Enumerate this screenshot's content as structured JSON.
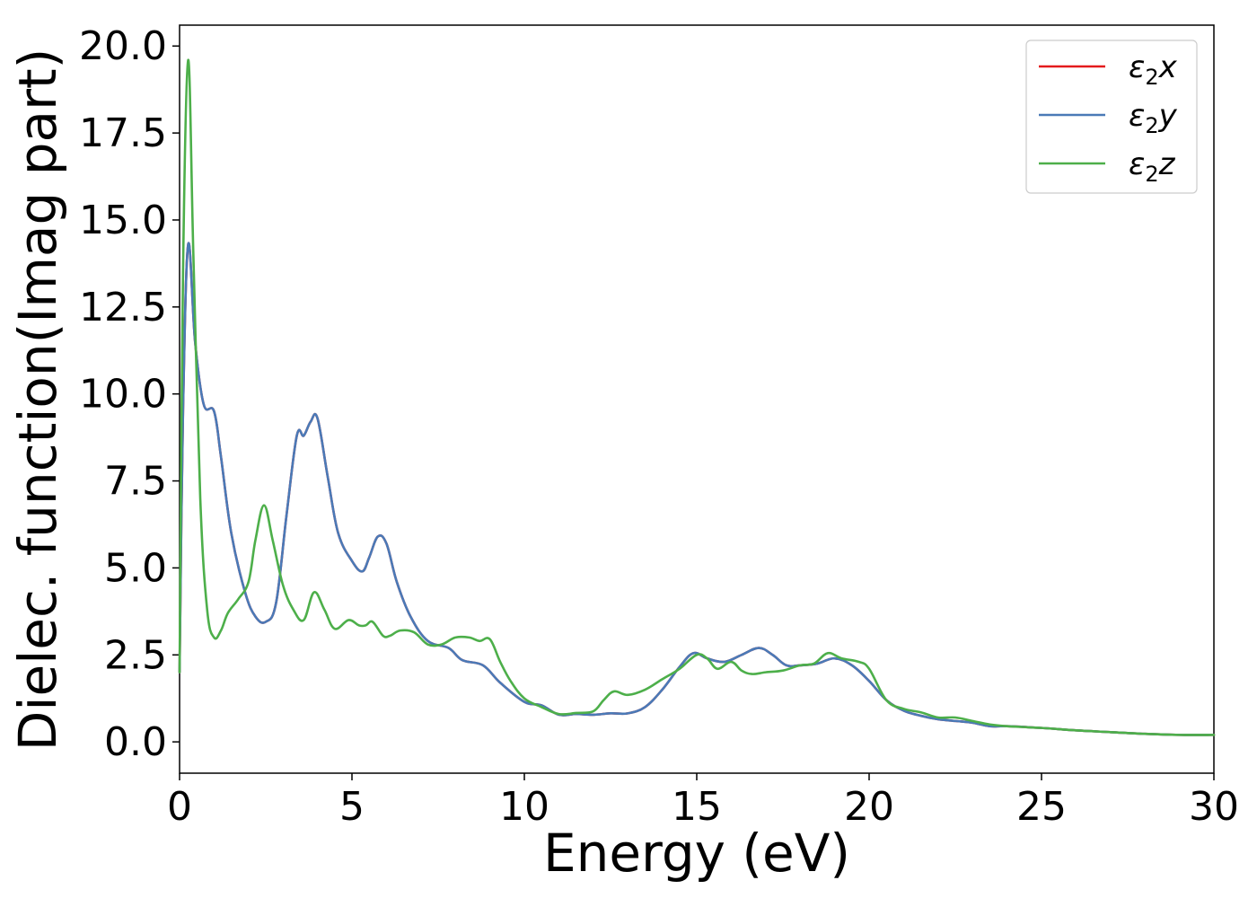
{
  "chart_data": {
    "type": "line",
    "xlabel": "Energy (eV)",
    "ylabel": "Dielec. function(Imag part)",
    "xlim": [
      0,
      30
    ],
    "ylim": [
      -0.9,
      20.6
    ],
    "xticks": [
      0,
      5,
      10,
      15,
      20,
      25,
      30
    ],
    "xtick_labels": [
      "0",
      "5",
      "10",
      "15",
      "20",
      "25",
      "30"
    ],
    "yticks": [
      0.0,
      2.5,
      5.0,
      7.5,
      10.0,
      12.5,
      15.0,
      17.5,
      20.0
    ],
    "ytick_labels": [
      "0.0",
      "2.5",
      "5.0",
      "7.5",
      "10.0",
      "12.5",
      "15.0",
      "17.5",
      "20.0"
    ],
    "grid": false,
    "legend_position": "top-right",
    "series": [
      {
        "name": "ε2x",
        "base": "ε",
        "sub": "2",
        "suffix": "x",
        "color": "#e41a1c",
        "x": [
          0,
          0.1,
          0.25,
          0.45,
          0.7,
          1.0,
          1.2,
          1.5,
          1.9,
          2.2,
          2.5,
          2.8,
          3.1,
          3.4,
          3.6,
          3.8,
          4.0,
          4.3,
          4.6,
          5.0,
          5.3,
          5.5,
          5.75,
          6.0,
          6.3,
          6.7,
          7.2,
          7.8,
          8.2,
          8.8,
          9.3,
          10.0,
          10.5,
          11.0,
          11.5,
          12.0,
          12.5,
          13.0,
          13.5,
          14.0,
          14.5,
          14.9,
          15.3,
          15.8,
          16.3,
          16.8,
          17.2,
          17.6,
          18.0,
          18.5,
          19.0,
          19.5,
          20.0,
          20.5,
          21.0,
          21.5,
          22.0,
          22.5,
          23.0,
          23.5,
          24.0,
          25.0,
          26.0,
          27.0,
          28.0,
          29.0,
          30.0
        ],
        "y": [
          2.0,
          9.5,
          14.3,
          11.5,
          9.7,
          9.5,
          8.2,
          6.0,
          4.3,
          3.6,
          3.45,
          4.0,
          6.5,
          8.8,
          8.8,
          9.2,
          9.3,
          7.6,
          6.0,
          5.2,
          4.9,
          5.3,
          5.9,
          5.7,
          4.6,
          3.6,
          2.9,
          2.7,
          2.35,
          2.2,
          1.7,
          1.15,
          1.05,
          0.78,
          0.8,
          0.78,
          0.82,
          0.82,
          1.0,
          1.5,
          2.15,
          2.55,
          2.4,
          2.3,
          2.5,
          2.7,
          2.5,
          2.2,
          2.2,
          2.25,
          2.4,
          2.2,
          1.75,
          1.2,
          0.9,
          0.75,
          0.65,
          0.6,
          0.55,
          0.45,
          0.45,
          0.4,
          0.33,
          0.28,
          0.23,
          0.2,
          0.2
        ]
      },
      {
        "name": "ε2y",
        "base": "ε",
        "sub": "2",
        "suffix": "y",
        "color": "#4a7ab7",
        "x": [
          0,
          0.1,
          0.25,
          0.45,
          0.7,
          1.0,
          1.2,
          1.5,
          1.9,
          2.2,
          2.5,
          2.8,
          3.1,
          3.4,
          3.6,
          3.8,
          4.0,
          4.3,
          4.6,
          5.0,
          5.3,
          5.5,
          5.75,
          6.0,
          6.3,
          6.7,
          7.2,
          7.8,
          8.2,
          8.8,
          9.3,
          10.0,
          10.5,
          11.0,
          11.5,
          12.0,
          12.5,
          13.0,
          13.5,
          14.0,
          14.5,
          14.9,
          15.3,
          15.8,
          16.3,
          16.8,
          17.2,
          17.6,
          18.0,
          18.5,
          19.0,
          19.5,
          20.0,
          20.5,
          21.0,
          21.5,
          22.0,
          22.5,
          23.0,
          23.5,
          24.0,
          25.0,
          26.0,
          27.0,
          28.0,
          29.0,
          30.0
        ],
        "y": [
          2.0,
          9.5,
          14.3,
          11.5,
          9.7,
          9.5,
          8.2,
          6.0,
          4.3,
          3.6,
          3.45,
          4.0,
          6.5,
          8.8,
          8.8,
          9.2,
          9.3,
          7.6,
          6.0,
          5.2,
          4.9,
          5.3,
          5.9,
          5.7,
          4.6,
          3.6,
          2.9,
          2.7,
          2.35,
          2.2,
          1.7,
          1.15,
          1.05,
          0.78,
          0.8,
          0.78,
          0.82,
          0.82,
          1.0,
          1.5,
          2.15,
          2.55,
          2.4,
          2.3,
          2.5,
          2.7,
          2.5,
          2.2,
          2.2,
          2.25,
          2.4,
          2.2,
          1.75,
          1.2,
          0.9,
          0.75,
          0.65,
          0.6,
          0.55,
          0.45,
          0.45,
          0.4,
          0.33,
          0.28,
          0.23,
          0.2,
          0.2
        ]
      },
      {
        "name": "ε2z",
        "base": "ε",
        "sub": "2",
        "suffix": "z",
        "color": "#4daf4a",
        "x": [
          0,
          0.1,
          0.25,
          0.4,
          0.6,
          0.8,
          1.0,
          1.2,
          1.4,
          1.7,
          2.0,
          2.2,
          2.45,
          2.7,
          3.0,
          3.3,
          3.6,
          3.9,
          4.2,
          4.5,
          4.9,
          5.2,
          5.4,
          5.6,
          5.9,
          6.1,
          6.4,
          6.8,
          7.2,
          7.6,
          8.0,
          8.4,
          8.7,
          9.0,
          9.3,
          9.6,
          10.0,
          10.5,
          11.0,
          11.5,
          12.0,
          12.3,
          12.6,
          13.0,
          13.5,
          14.0,
          14.5,
          15.0,
          15.3,
          15.6,
          16.0,
          16.3,
          16.6,
          17.0,
          17.5,
          18.0,
          18.4,
          18.8,
          19.2,
          19.7,
          20.0,
          20.5,
          21.0,
          21.5,
          22.0,
          22.5,
          23.0,
          23.5,
          24.0,
          25.0,
          26.0,
          27.0,
          28.0,
          29.0,
          30.0
        ],
        "y": [
          2.0,
          13.5,
          19.6,
          14.0,
          7.0,
          3.8,
          3.0,
          3.2,
          3.7,
          4.1,
          4.6,
          5.8,
          6.8,
          5.8,
          4.5,
          3.8,
          3.5,
          4.3,
          3.8,
          3.25,
          3.5,
          3.35,
          3.35,
          3.45,
          3.05,
          3.05,
          3.2,
          3.15,
          2.8,
          2.8,
          3.0,
          3.0,
          2.9,
          2.95,
          2.3,
          1.75,
          1.25,
          1.0,
          0.8,
          0.83,
          0.88,
          1.2,
          1.45,
          1.35,
          1.5,
          1.8,
          2.1,
          2.5,
          2.4,
          2.1,
          2.3,
          2.05,
          1.95,
          2.0,
          2.05,
          2.2,
          2.25,
          2.55,
          2.4,
          2.3,
          2.1,
          1.2,
          0.95,
          0.85,
          0.7,
          0.7,
          0.6,
          0.5,
          0.45,
          0.4,
          0.33,
          0.28,
          0.23,
          0.2,
          0.2
        ]
      }
    ]
  }
}
